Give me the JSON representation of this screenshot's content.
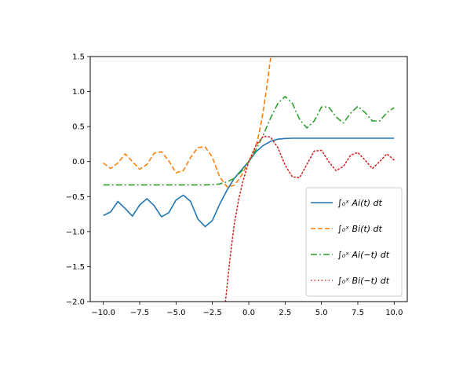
{
  "chart_data": {
    "type": "line",
    "title": "",
    "xlabel": "",
    "ylabel": "",
    "xlim": [
      -10.9,
      10.9
    ],
    "ylim": [
      -2.0,
      1.5
    ],
    "xticks": [
      -10.0,
      -7.5,
      -5.0,
      -2.5,
      0.0,
      2.5,
      5.0,
      7.5,
      10.0
    ],
    "xtick_labels": [
      "−10.0",
      "−7.5",
      "−5.0",
      "−2.5",
      "0.0",
      "2.5",
      "5.0",
      "7.5",
      "10.0"
    ],
    "yticks": [
      -2.0,
      -1.5,
      -1.0,
      -0.5,
      0.0,
      0.5,
      1.0,
      1.5
    ],
    "ytick_labels": [
      "−2.0",
      "−1.5",
      "−1.0",
      "−0.5",
      "0.0",
      "0.5",
      "1.0",
      "1.5"
    ],
    "grid": false,
    "legend_position": "lower-right",
    "series": [
      {
        "name": "∫₀ˣ Ai(t) dt",
        "color": "#1f77b4",
        "style": "solid",
        "x": [
          -10,
          -9.5,
          -9,
          -8.5,
          -8,
          -7.5,
          -7,
          -6.5,
          -6,
          -5.5,
          -5,
          -4.5,
          -4,
          -3.5,
          -3,
          -2.5,
          -2,
          -1.5,
          -1,
          -0.5,
          0,
          0.5,
          1,
          1.5,
          2,
          2.5,
          3,
          4,
          5,
          6,
          7,
          8,
          9,
          10
        ],
        "y": [
          -0.77,
          -0.72,
          -0.57,
          -0.67,
          -0.78,
          -0.62,
          -0.53,
          -0.63,
          -0.79,
          -0.73,
          -0.55,
          -0.48,
          -0.57,
          -0.82,
          -0.93,
          -0.84,
          -0.61,
          -0.41,
          -0.24,
          -0.12,
          0.0,
          0.14,
          0.23,
          0.29,
          0.32,
          0.33,
          0.333,
          0.333,
          0.333,
          0.333,
          0.333,
          0.333,
          0.333,
          0.333
        ]
      },
      {
        "name": "∫₀ˣ Bi(t) dt",
        "color": "#ff7f0e",
        "style": "dashed",
        "x": [
          -10,
          -9.5,
          -9,
          -8.5,
          -8,
          -7.5,
          -7,
          -6.5,
          -6,
          -5.5,
          -5,
          -4.5,
          -4,
          -3.5,
          -3,
          -2.5,
          -2,
          -1.5,
          -1,
          -0.5,
          0,
          0.3,
          0.6,
          0.9,
          1.2,
          1.5
        ],
        "y": [
          -0.02,
          -0.1,
          -0.02,
          0.11,
          0.0,
          -0.11,
          -0.04,
          0.12,
          0.14,
          0.01,
          -0.16,
          -0.13,
          0.06,
          0.2,
          0.21,
          0.06,
          -0.22,
          -0.36,
          -0.34,
          -0.2,
          0.0,
          0.12,
          0.3,
          0.6,
          1.0,
          1.48
        ]
      },
      {
        "name": "∫₀ˣ Ai(−t) dt",
        "color": "#2ca02c",
        "style": "dashdot",
        "x": [
          -10,
          -8,
          -6,
          -4,
          -3,
          -2.5,
          -2,
          -1.5,
          -1,
          -0.5,
          0,
          0.5,
          1,
          1.5,
          2,
          2.5,
          3,
          3.5,
          4,
          4.5,
          5,
          5.5,
          6,
          6.5,
          7,
          7.5,
          8,
          8.5,
          9,
          9.5,
          10
        ],
        "y": [
          -0.333,
          -0.333,
          -0.333,
          -0.333,
          -0.333,
          -0.33,
          -0.32,
          -0.29,
          -0.24,
          -0.14,
          0.0,
          0.17,
          0.38,
          0.62,
          0.83,
          0.93,
          0.83,
          0.6,
          0.48,
          0.58,
          0.78,
          0.78,
          0.64,
          0.55,
          0.69,
          0.79,
          0.7,
          0.58,
          0.58,
          0.7,
          0.77
        ]
      },
      {
        "name": "∫₀ˣ Bi(−t) dt",
        "color": "#d62728",
        "style": "dotted",
        "x": [
          -1.6,
          -1.3,
          -1.0,
          -0.7,
          -0.4,
          0,
          0.5,
          1,
          1.5,
          2,
          2.5,
          3,
          3.5,
          4,
          4.5,
          5,
          5.5,
          6,
          6.5,
          7,
          7.5,
          8,
          8.5,
          9,
          9.5,
          10
        ],
        "y": [
          -2.0,
          -1.4,
          -0.9,
          -0.55,
          -0.28,
          0.0,
          0.23,
          0.36,
          0.35,
          0.2,
          -0.05,
          -0.22,
          -0.23,
          -0.04,
          0.15,
          0.16,
          0.0,
          -0.13,
          -0.07,
          0.09,
          0.13,
          0.02,
          -0.1,
          0.0,
          0.11,
          0.02
        ]
      }
    ],
    "legend_labels": [
      "∫₀ˣ Ai(t) dt",
      "∫₀ˣ Bi(t) dt",
      "∫₀ˣ Ai(−t) dt",
      "∫₀ˣ Bi(−t) dt"
    ]
  }
}
